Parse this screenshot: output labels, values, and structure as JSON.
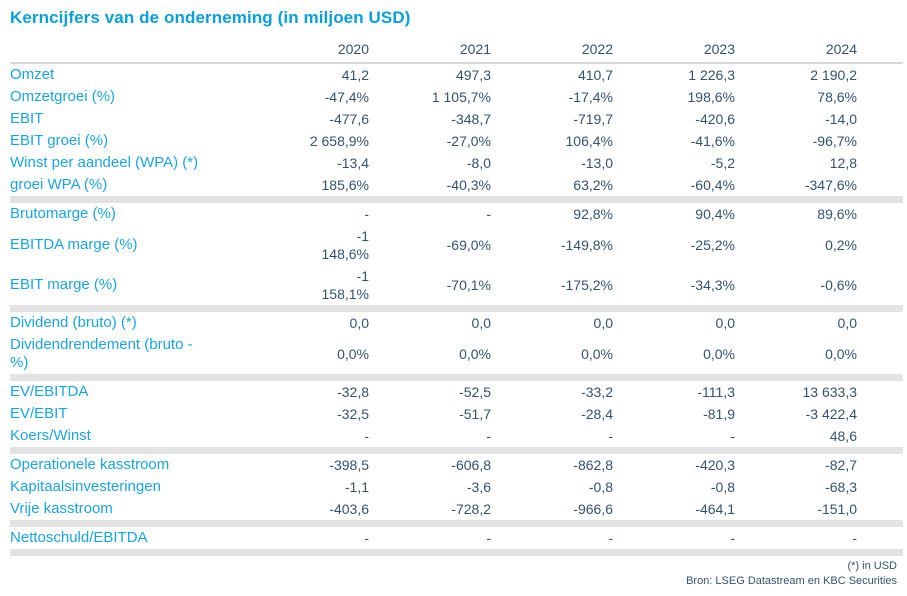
{
  "title": "Kerncijfers van de onderneming (in miljoen USD)",
  "years": [
    "2020",
    "2021",
    "2022",
    "2023",
    "2024"
  ],
  "rows": [
    {
      "label": "Omzet",
      "values": [
        "41,2",
        "497,3",
        "410,7",
        "1 226,3",
        "2 190,2"
      ]
    },
    {
      "label": "Omzetgroei (%)",
      "values": [
        "-47,4%",
        "1 105,7%",
        "-17,4%",
        "198,6%",
        "78,6%"
      ]
    },
    {
      "label": "EBIT",
      "values": [
        "-477,6",
        "-348,7",
        "-719,7",
        "-420,6",
        "-14,0"
      ]
    },
    {
      "label": "EBIT groei (%)",
      "values": [
        "2 658,9%",
        "-27,0%",
        "106,4%",
        "-41,6%",
        "-96,7%"
      ]
    },
    {
      "label": "Winst per aandeel (WPA) (*)",
      "values": [
        "-13,4",
        "-8,0",
        "-13,0",
        "-5,2",
        "12,8"
      ]
    },
    {
      "label": "groei WPA (%)",
      "values": [
        "185,6%",
        "-40,3%",
        "63,2%",
        "-60,4%",
        "-347,6%"
      ]
    },
    {
      "label": "Brutomarge (%)",
      "values": [
        "-",
        "-",
        "92,8%",
        "90,4%",
        "89,6%"
      ]
    },
    {
      "label": "EBITDA marge (%)",
      "values": [
        "-1\n148,6%",
        "-69,0%",
        "-149,8%",
        "-25,2%",
        "0,2%"
      ]
    },
    {
      "label": "EBIT marge (%)",
      "values": [
        "-1\n158,1%",
        "-70,1%",
        "-175,2%",
        "-34,3%",
        "-0,6%"
      ]
    },
    {
      "label": "Dividend (bruto) (*)",
      "values": [
        "0,0",
        "0,0",
        "0,0",
        "0,0",
        "0,0"
      ]
    },
    {
      "label": "Dividendrendement (bruto -\n%)",
      "values": [
        "0,0%",
        "0,0%",
        "0,0%",
        "0,0%",
        "0,0%"
      ]
    },
    {
      "label": "EV/EBITDA",
      "values": [
        "-32,8",
        "-52,5",
        "-33,2",
        "-111,3",
        "13 633,3"
      ]
    },
    {
      "label": "EV/EBIT",
      "values": [
        "-32,5",
        "-51,7",
        "-28,4",
        "-81,9",
        "-3 422,4"
      ]
    },
    {
      "label": "Koers/Winst",
      "values": [
        "-",
        "-",
        "-",
        "-",
        "48,6"
      ]
    },
    {
      "label": "Operationele kasstroom",
      "values": [
        "-398,5",
        "-606,8",
        "-862,8",
        "-420,3",
        "-82,7"
      ]
    },
    {
      "label": "Kapitaalsinvesteringen",
      "values": [
        "-1,1",
        "-3,6",
        "-0,8",
        "-0,8",
        "-68,3"
      ]
    },
    {
      "label": "Vrije kasstroom",
      "values": [
        "-403,6",
        "-728,2",
        "-966,6",
        "-464,1",
        "-151,0"
      ]
    },
    {
      "label": "Nettoschuld/EBITDA",
      "values": [
        "-",
        "-",
        "-",
        "-",
        "-"
      ]
    }
  ],
  "footer": {
    "note": "(*) in USD",
    "source": "Bron: LSEG Datastream en KBC Securities"
  },
  "colors": {
    "title_blue": "#089fdb",
    "label_blue": "#1ca4e0",
    "value_navy": "#34536e",
    "separator_gray": "#e3e3e3",
    "header_rule_gray": "#d9d9d9"
  }
}
